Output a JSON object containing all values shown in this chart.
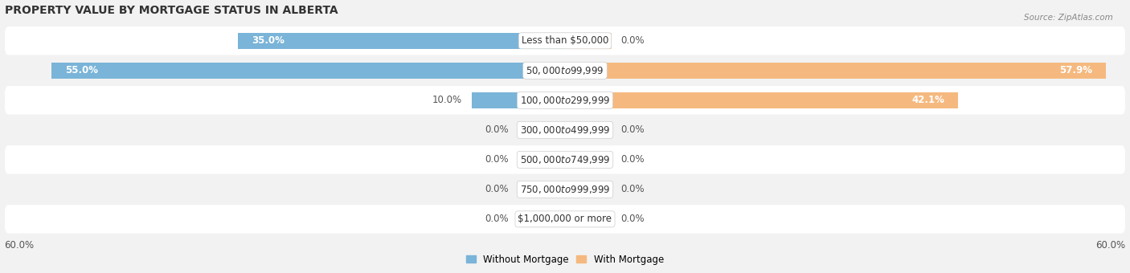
{
  "title": "PROPERTY VALUE BY MORTGAGE STATUS IN ALBERTA",
  "source": "Source: ZipAtlas.com",
  "categories": [
    "Less than $50,000",
    "$50,000 to $99,999",
    "$100,000 to $299,999",
    "$300,000 to $499,999",
    "$500,000 to $749,999",
    "$750,000 to $999,999",
    "$1,000,000 or more"
  ],
  "without_mortgage": [
    35.0,
    55.0,
    10.0,
    0.0,
    0.0,
    0.0,
    0.0
  ],
  "with_mortgage": [
    0.0,
    57.9,
    42.1,
    0.0,
    0.0,
    0.0,
    0.0
  ],
  "color_without": "#7ab4d8",
  "color_with": "#f5b97f",
  "color_without_zero": "#aacce8",
  "color_with_zero": "#f7d4aa",
  "xlim": 60.0,
  "zero_stub": 5.0,
  "bar_height": 0.55,
  "row_bg_light": "#f2f2f2",
  "row_bg_white": "#ffffff",
  "fig_bg": "#f2f2f2",
  "title_fontsize": 10,
  "source_fontsize": 7.5,
  "label_fontsize": 8.5,
  "value_fontsize": 8.5,
  "edge_label_fontsize": 8.5,
  "legend_fontsize": 8.5,
  "figsize": [
    14.06,
    3.4
  ]
}
